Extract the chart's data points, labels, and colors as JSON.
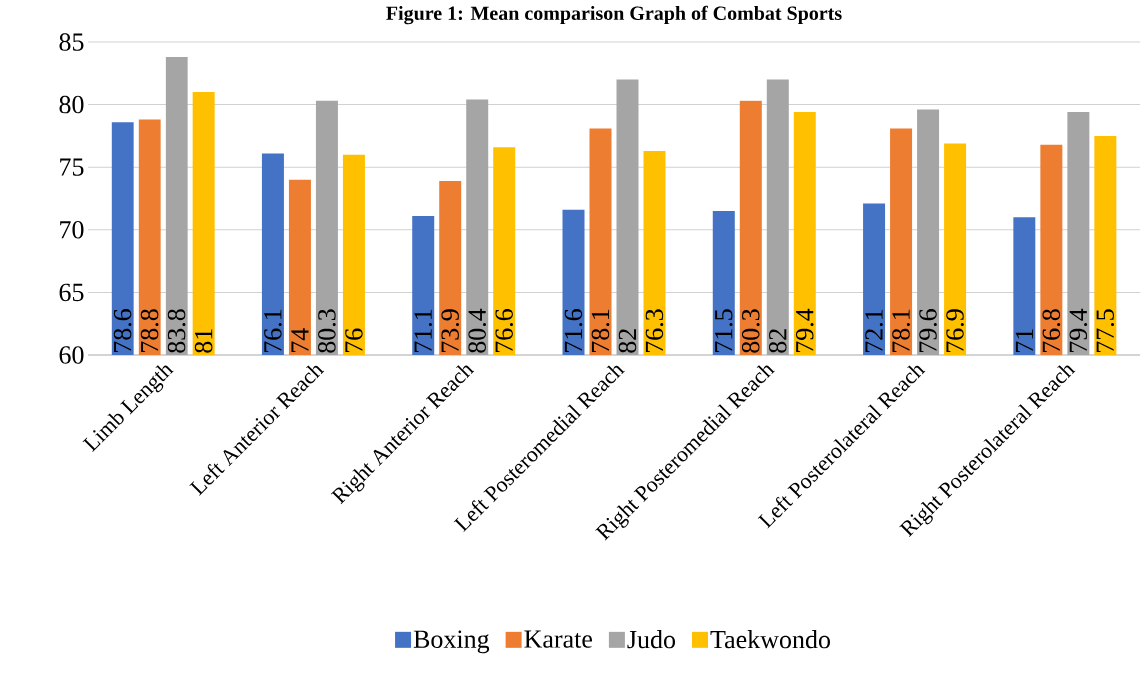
{
  "chart_data": {
    "type": "bar",
    "title": "Figure 1: Mean comparison Graph of Combat Sports",
    "categories": [
      "Limb Length",
      "Left Anterior Reach",
      "Right Anterior Reach",
      "Left Posteromedial Reach",
      "Right Posteromedial Reach",
      "Left Posterolateral Reach",
      "Right Posterolateral Reach"
    ],
    "series": [
      {
        "name": "Boxing",
        "color": "#4472c4",
        "values": [
          78.6,
          76.1,
          71.1,
          71.6,
          71.5,
          72.1,
          71
        ]
      },
      {
        "name": "Karate",
        "color": "#ed7d31",
        "values": [
          78.8,
          74,
          73.9,
          78.1,
          80.3,
          78.1,
          76.8
        ]
      },
      {
        "name": "Judo",
        "color": "#a5a5a5",
        "values": [
          83.8,
          80.3,
          80.4,
          82,
          82,
          79.6,
          79.4
        ]
      },
      {
        "name": "Taekwondo",
        "color": "#ffc000",
        "values": [
          81,
          76,
          76.6,
          76.3,
          79.4,
          76.9,
          77.5
        ]
      }
    ],
    "ylim": [
      60,
      85
    ],
    "yticks": [
      60,
      65,
      70,
      75,
      80,
      85
    ],
    "grid": "y",
    "legend": "bottom",
    "data_labels": true
  }
}
